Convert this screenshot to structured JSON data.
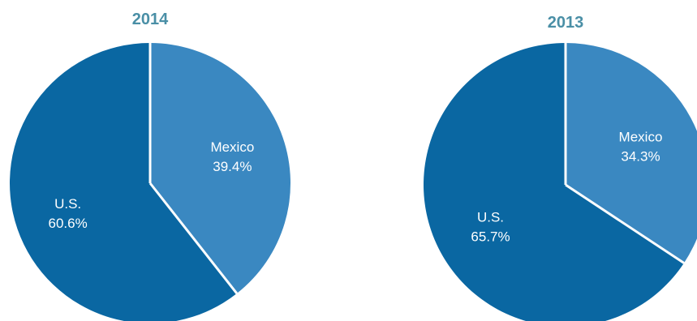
{
  "colors": {
    "title": "#4a8fa6",
    "us": "#0a67a2",
    "mexico": "#3a88c1",
    "separator": "#ffffff",
    "label": "#ffffff"
  },
  "chart_data": [
    {
      "type": "pie",
      "title": "2014",
      "slices": [
        {
          "label": "Mexico",
          "value": 39.4,
          "value_label": "39.4%",
          "color": "#3a88c1"
        },
        {
          "label": "U.S.",
          "value": 60.6,
          "value_label": "60.6%",
          "color": "#0a67a2"
        }
      ],
      "start": "12 o'clock",
      "direction": "clockwise"
    },
    {
      "type": "pie",
      "title": "2013",
      "slices": [
        {
          "label": "Mexico",
          "value": 34.3,
          "value_label": "34.3%",
          "color": "#3a88c1"
        },
        {
          "label": "U.S.",
          "value": 65.7,
          "value_label": "65.7%",
          "color": "#0a67a2"
        }
      ],
      "start": "12 o'clock",
      "direction": "clockwise"
    }
  ]
}
